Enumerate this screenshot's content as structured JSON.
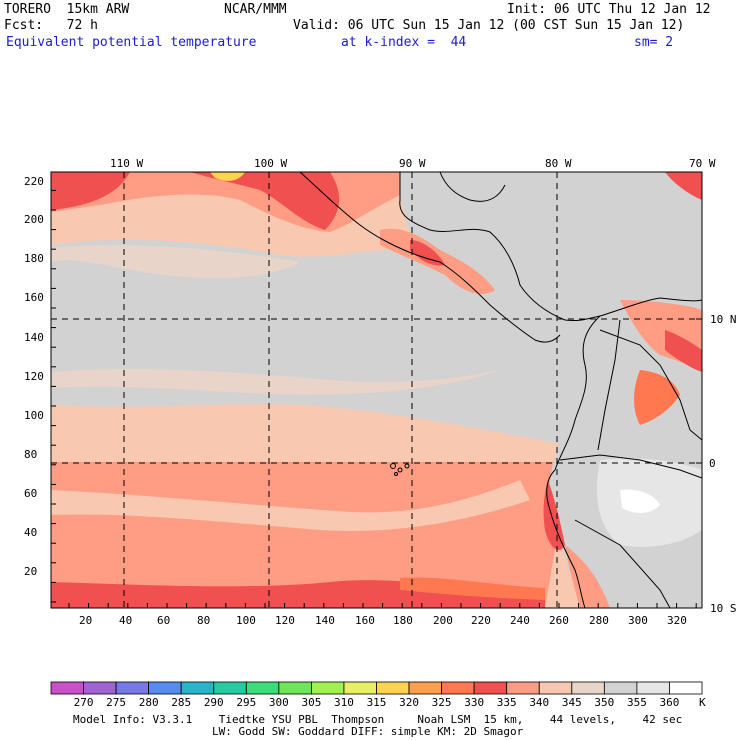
{
  "header": {
    "model": "TORERO  15km ARW",
    "org": "NCAR/MMM",
    "init": "Init: 06 UTC Thu 12 Jan 12",
    "fcst": "Fcst:   72 h",
    "valid": "Valid: 06 UTC Sun 15 Jan 12 (00 CST Sun 15 Jan 12)",
    "field": "Equivalent potential temperature",
    "level": "at k-index =  44",
    "smooth": "sm= 2"
  },
  "axes": {
    "top_lon": [
      "110 W",
      "100 W",
      "90 W",
      "80 W",
      "70 W"
    ],
    "right_lat": [
      "10 N",
      "0",
      "10 S"
    ],
    "left_y": [
      "220",
      "200",
      "180",
      "160",
      "140",
      "120",
      "100",
      "80",
      "60",
      "40",
      "20"
    ],
    "bottom_x": [
      "20",
      "40",
      "60",
      "80",
      "100",
      "120",
      "140",
      "160",
      "180",
      "200",
      "220",
      "240",
      "260",
      "280",
      "300",
      "320"
    ]
  },
  "colorbar": {
    "unit": "K",
    "labels": [
      "270",
      "275",
      "280",
      "285",
      "290",
      "295",
      "300",
      "305",
      "310",
      "315",
      "320",
      "325",
      "330",
      "335",
      "340",
      "345",
      "350",
      "355",
      "360"
    ],
    "colors": [
      "#c850c8",
      "#a064d2",
      "#7878e6",
      "#5a8cf0",
      "#2ab4c8",
      "#28c8a0",
      "#3cdc78",
      "#6ee65a",
      "#a0f050",
      "#e6f064",
      "#ffd250",
      "#ffa050",
      "#ff7850",
      "#f05050",
      "#ff9c84",
      "#f8c8b0",
      "#e8d4c8",
      "#d2d2d2",
      "#e6e6e6",
      "#ffffff"
    ]
  },
  "footer": {
    "line1": "Model Info: V3.3.1    Tiedtke YSU PBL  Thompson     Noah LSM  15 km,    44 levels,    42 sec",
    "line2": "LW: Godd SW: Goddard DIFF: simple KM: 2D Smagor"
  }
}
